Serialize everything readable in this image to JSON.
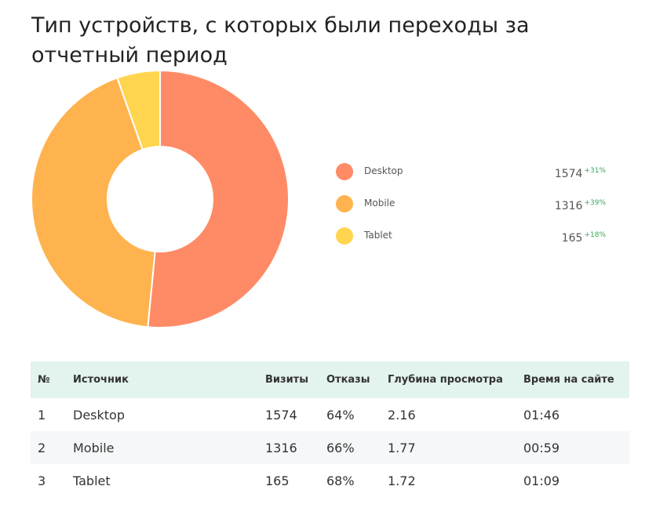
{
  "title": "Тип устройств, с которых были переходы за отчетный период",
  "colors": {
    "desktop": "#fe8b66",
    "mobile": "#ffb34e",
    "tablet": "#ffd54f",
    "growth": "#3aa757",
    "header_bg": "#e3f3ee"
  },
  "chart_data": {
    "type": "pie",
    "variant": "donut",
    "categories": [
      "Desktop",
      "Mobile",
      "Tablet"
    ],
    "values": [
      1574,
      1316,
      165
    ],
    "changes": [
      "+31%",
      "+39%",
      "+18%"
    ],
    "legend_position": "right"
  },
  "legend": [
    {
      "label": "Desktop",
      "value": "1574",
      "change": "+31%"
    },
    {
      "label": "Mobile",
      "value": "1316",
      "change": "+39%"
    },
    {
      "label": "Tablet",
      "value": "165",
      "change": "+18%"
    }
  ],
  "table": {
    "headers": [
      "№",
      "Источник",
      "Визиты",
      "Отказы",
      "Глубина просмотра",
      "Время на сайте"
    ],
    "rows": [
      [
        "1",
        "Desktop",
        "1574",
        "64%",
        "2.16",
        "01:46"
      ],
      [
        "2",
        "Mobile",
        "1316",
        "66%",
        "1.77",
        "00:59"
      ],
      [
        "3",
        "Tablet",
        "165",
        "68%",
        "1.72",
        "01:09"
      ]
    ]
  }
}
